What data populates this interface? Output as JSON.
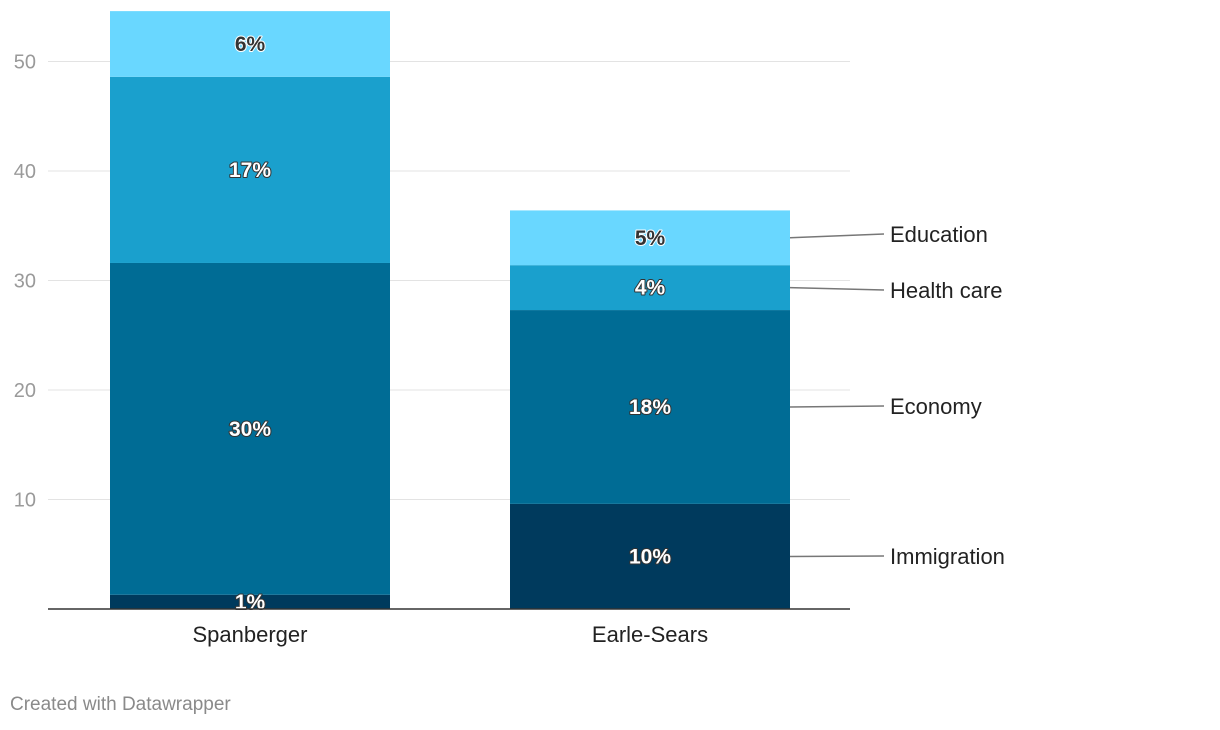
{
  "chart_data": {
    "type": "bar",
    "stacked": true,
    "categories": [
      "Spanberger",
      "Earle-Sears"
    ],
    "series": [
      {
        "name": "Immigration",
        "values": [
          1.3,
          9.6
        ],
        "labels": [
          "1%",
          "10%"
        ],
        "color": "#003a5d"
      },
      {
        "name": "Economy",
        "values": [
          30.3,
          17.7
        ],
        "labels": [
          "30%",
          "18%"
        ],
        "color": "#006c95"
      },
      {
        "name": "Health care",
        "values": [
          17.0,
          4.1
        ],
        "labels": [
          "17%",
          "4%"
        ],
        "color": "#1aa0cd"
      },
      {
        "name": "Education",
        "values": [
          6.0,
          5.0
        ],
        "labels": [
          "6%",
          "5%"
        ],
        "color": "#69d7ff"
      }
    ],
    "yticks": [
      10,
      20,
      30,
      40,
      50
    ],
    "ylim": [
      0,
      55
    ],
    "grid": true,
    "legend": "right-inline"
  },
  "credit": "Created with Datawrapper"
}
